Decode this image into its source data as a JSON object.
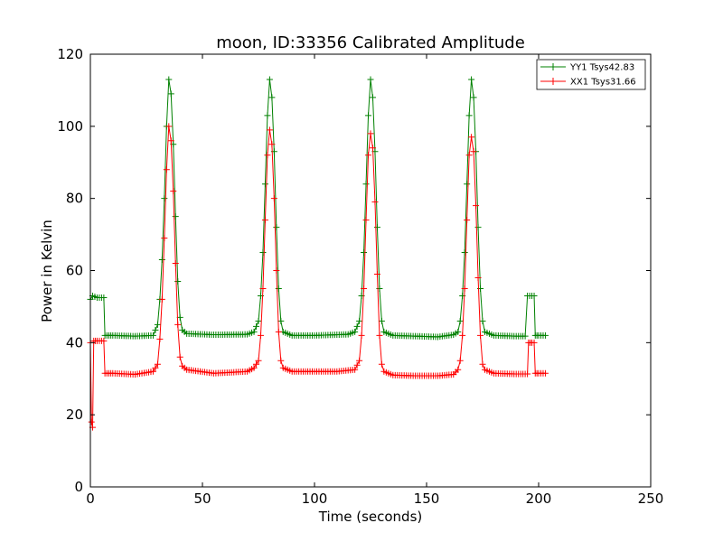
{
  "chart_data": {
    "type": "line",
    "title": "moon, ID:33356 Calibrated Amplitude",
    "xlabel": "Time (seconds)",
    "ylabel": "Power in Kelvin",
    "xlim": [
      0,
      250
    ],
    "ylim": [
      0,
      120
    ],
    "xticks": [
      0,
      50,
      100,
      150,
      200,
      250
    ],
    "yticks": [
      0,
      20,
      40,
      60,
      80,
      100,
      120
    ],
    "grid": false,
    "legend_position": "top-right",
    "marker": "plus",
    "series": [
      {
        "name": "YY1 Tsys42.83",
        "color": "#008000",
        "points": [
          [
            0,
            52
          ],
          [
            1,
            53
          ],
          [
            3,
            52.5
          ],
          [
            5,
            52.5
          ],
          [
            6,
            52.5
          ],
          [
            6.5,
            42
          ],
          [
            10,
            42
          ],
          [
            20,
            41.8
          ],
          [
            28,
            42
          ],
          [
            30,
            45
          ],
          [
            31,
            52
          ],
          [
            32,
            63
          ],
          [
            33,
            80
          ],
          [
            34,
            100
          ],
          [
            35,
            113
          ],
          [
            36,
            109
          ],
          [
            37,
            95
          ],
          [
            38,
            75
          ],
          [
            39,
            57
          ],
          [
            40,
            47
          ],
          [
            41,
            43.5
          ],
          [
            43,
            42.5
          ],
          [
            55,
            42.2
          ],
          [
            70,
            42.3
          ],
          [
            73,
            43
          ],
          [
            75,
            46
          ],
          [
            76,
            53
          ],
          [
            77,
            65
          ],
          [
            78,
            84
          ],
          [
            79,
            103
          ],
          [
            80,
            113
          ],
          [
            81,
            108
          ],
          [
            82,
            93
          ],
          [
            83,
            72
          ],
          [
            84,
            55
          ],
          [
            85,
            46
          ],
          [
            86,
            43
          ],
          [
            90,
            42
          ],
          [
            100,
            42
          ],
          [
            115,
            42.3
          ],
          [
            118,
            43
          ],
          [
            120,
            46
          ],
          [
            121,
            53
          ],
          [
            122,
            65
          ],
          [
            123,
            84
          ],
          [
            124,
            103
          ],
          [
            125,
            113
          ],
          [
            126,
            108
          ],
          [
            127,
            93
          ],
          [
            128,
            72
          ],
          [
            129,
            55
          ],
          [
            130,
            46
          ],
          [
            131,
            43
          ],
          [
            135,
            42
          ],
          [
            145,
            41.8
          ],
          [
            155,
            41.6
          ],
          [
            162,
            42.2
          ],
          [
            164,
            43
          ],
          [
            165,
            46
          ],
          [
            166,
            53
          ],
          [
            167,
            65
          ],
          [
            168,
            84
          ],
          [
            169,
            103
          ],
          [
            170,
            113
          ],
          [
            171,
            108
          ],
          [
            172,
            93
          ],
          [
            173,
            72
          ],
          [
            174,
            55
          ],
          [
            175,
            46
          ],
          [
            176,
            43
          ],
          [
            180,
            42
          ],
          [
            190,
            41.8
          ],
          [
            194,
            41.8
          ],
          [
            195,
            53
          ],
          [
            196,
            53
          ],
          [
            197,
            53
          ],
          [
            198,
            53
          ],
          [
            198.5,
            42
          ],
          [
            200,
            42
          ],
          [
            203,
            42
          ]
        ]
      },
      {
        "name": "XX1 Tsys31.66",
        "color": "#ff0000",
        "points": [
          [
            0,
            40
          ],
          [
            0.5,
            18
          ],
          [
            1,
            16.5
          ],
          [
            1.5,
            40.5
          ],
          [
            3,
            40.5
          ],
          [
            5,
            40.5
          ],
          [
            6,
            40.5
          ],
          [
            6.5,
            31.5
          ],
          [
            10,
            31.5
          ],
          [
            20,
            31.2
          ],
          [
            28,
            32
          ],
          [
            30,
            34
          ],
          [
            31,
            41
          ],
          [
            32,
            52
          ],
          [
            33,
            69
          ],
          [
            34,
            88
          ],
          [
            35,
            100
          ],
          [
            36,
            96
          ],
          [
            37,
            82
          ],
          [
            38,
            62
          ],
          [
            39,
            45
          ],
          [
            40,
            36
          ],
          [
            41,
            33.5
          ],
          [
            43,
            32.5
          ],
          [
            55,
            31.5
          ],
          [
            70,
            32
          ],
          [
            73,
            33
          ],
          [
            75,
            35
          ],
          [
            76,
            42
          ],
          [
            77,
            55
          ],
          [
            78,
            74
          ],
          [
            79,
            92
          ],
          [
            80,
            99
          ],
          [
            81,
            95
          ],
          [
            82,
            80
          ],
          [
            83,
            60
          ],
          [
            84,
            43
          ],
          [
            85,
            35
          ],
          [
            86,
            33
          ],
          [
            90,
            32
          ],
          [
            100,
            32
          ],
          [
            110,
            32
          ],
          [
            118,
            32.5
          ],
          [
            120,
            35
          ],
          [
            121,
            42
          ],
          [
            122,
            55
          ],
          [
            123,
            74
          ],
          [
            124,
            92
          ],
          [
            125,
            98
          ],
          [
            126,
            94
          ],
          [
            127,
            79
          ],
          [
            128,
            59
          ],
          [
            129,
            42
          ],
          [
            130,
            34
          ],
          [
            131,
            32
          ],
          [
            135,
            31
          ],
          [
            145,
            30.8
          ],
          [
            155,
            30.8
          ],
          [
            162,
            31.2
          ],
          [
            164,
            32.5
          ],
          [
            165,
            35
          ],
          [
            166,
            42
          ],
          [
            167,
            55
          ],
          [
            168,
            74
          ],
          [
            169,
            92
          ],
          [
            170,
            97
          ],
          [
            171,
            93
          ],
          [
            172,
            78
          ],
          [
            173,
            58
          ],
          [
            174,
            42
          ],
          [
            175,
            34
          ],
          [
            176,
            32.5
          ],
          [
            180,
            31.5
          ],
          [
            190,
            31.3
          ],
          [
            195,
            31.3
          ],
          [
            195.5,
            40
          ],
          [
            197,
            40
          ],
          [
            198,
            40
          ],
          [
            198.5,
            31.5
          ],
          [
            200,
            31.5
          ],
          [
            203,
            31.5
          ]
        ]
      }
    ]
  }
}
